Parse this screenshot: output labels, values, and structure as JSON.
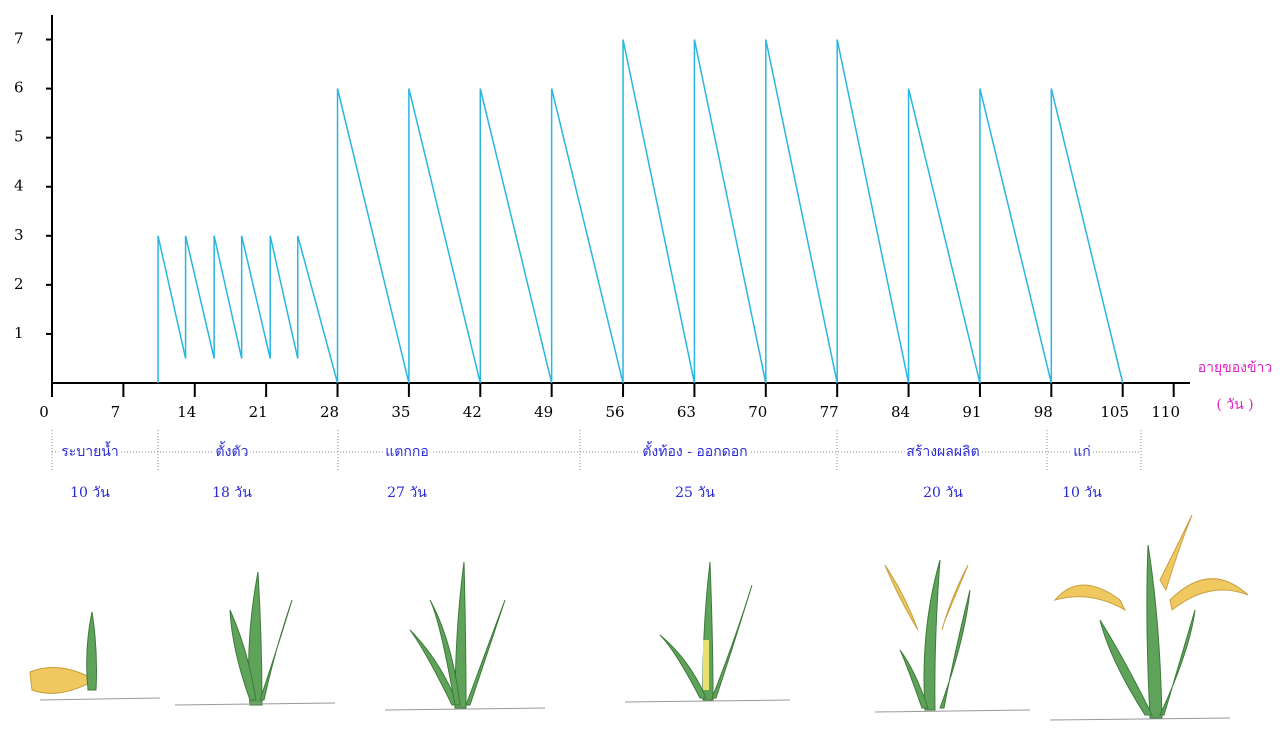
{
  "chart_data": {
    "type": "line",
    "x_label": "อายุของข้าว",
    "x_unit": "( วัน )",
    "xlim": [
      0,
      111.6
    ],
    "xticks": [
      0,
      7,
      14,
      21,
      28,
      35,
      42,
      49,
      56,
      63,
      70,
      77,
      84,
      91,
      98,
      105,
      110
    ],
    "ylim": [
      0,
      7.5
    ],
    "yticks": [
      1,
      2,
      3,
      4,
      5,
      6,
      7
    ],
    "series": [
      {
        "color": "#29b6e0",
        "x": [
          10.4,
          10.4,
          13.1,
          13.1,
          15.9,
          15.9,
          18.6,
          18.6,
          21.4,
          21.4,
          24.1,
          24.1,
          28,
          28,
          35,
          35,
          42,
          42,
          49,
          49,
          56,
          56,
          63,
          63,
          70,
          70,
          77,
          77,
          84,
          84,
          91,
          91,
          98,
          98,
          105
        ],
        "values": [
          0,
          3,
          0.5,
          3,
          0.5,
          3,
          0.5,
          3,
          0.5,
          3,
          0.5,
          3,
          0,
          6,
          0,
          6,
          0,
          6,
          0,
          6,
          0,
          7,
          0,
          7,
          0,
          7,
          0,
          7,
          0,
          6,
          0,
          6,
          0,
          6,
          0
        ]
      }
    ],
    "stages": [
      {
        "name": "ระบายน้ำ",
        "duration": "10 วัน"
      },
      {
        "name": "ตั้งตัว",
        "duration": "18 วัน"
      },
      {
        "name": "แตกกอ",
        "duration": "27 วัน"
      },
      {
        "name": "ตั้งท้อง - ออกดอก",
        "duration": "25 วัน"
      },
      {
        "name": "สร้างผลผลิต",
        "duration": "20 วัน"
      },
      {
        "name": "แก่",
        "duration": "10 วัน"
      }
    ]
  }
}
